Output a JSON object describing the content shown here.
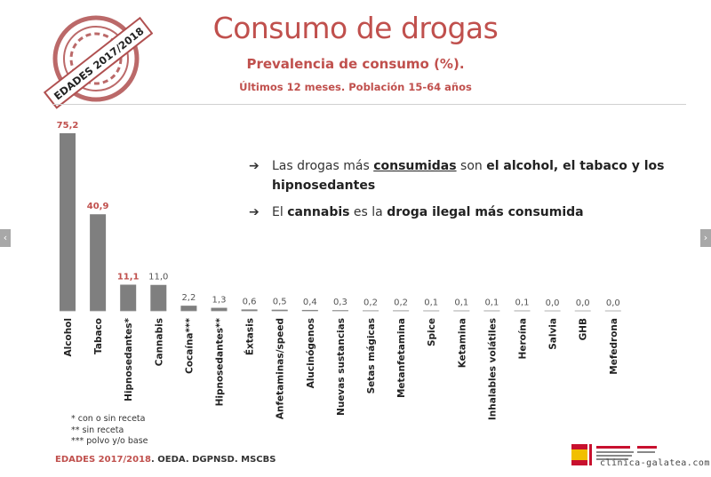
{
  "header": {
    "title": "Consumo de drogas",
    "subtitle": "Prevalencia de consumo (%).",
    "subtitle2": "Últimos 12 meses. Población 15-64 años"
  },
  "stamp": {
    "text": "EDADES 2017/2018"
  },
  "bullets": [
    {
      "icon": "right-arrow-icon",
      "p1": "Las drogas más ",
      "p2": "consumidas",
      "p3": " son ",
      "p4": "el alcohol, el tabaco y los hipnosedantes"
    },
    {
      "icon": "right-arrow-icon",
      "p1": "El ",
      "p2": "cannabis",
      "p3": " es la ",
      "p4": "droga ilegal más consumida"
    }
  ],
  "footnotes": [
    "* con o sin receta",
    "** sin receta",
    "*** polvo y/o base"
  ],
  "source": {
    "red": "EDADES 2017/2018",
    "rest": ". OEDA. DGPNSD. MSCBS"
  },
  "watermark": "clinica-galatea.com",
  "nav": {
    "prev": "‹",
    "next": "›"
  },
  "colors": {
    "accent": "#c0504d",
    "bar": "#7f7f7f",
    "label_red": "#c0504d",
    "label_gray": "#555555"
  },
  "chart_data": {
    "type": "bar",
    "categories": [
      "Alcohol",
      "Tabaco",
      "Hipnosedantes*",
      "Cannabis",
      "Cocaína***",
      "Hipnosedantes**",
      "Éxtasis",
      "Anfetaminas/speed",
      "Alucinógenos",
      "Nuevas sustancias",
      "Setas mágicas",
      "Metanfetamina",
      "Spice",
      "Ketamina",
      "Inhalables volátiles",
      "Heroína",
      "Salvia",
      "GHB",
      "Mefedrona"
    ],
    "values": [
      75.2,
      40.9,
      11.1,
      11.0,
      2.2,
      1.3,
      0.6,
      0.5,
      0.4,
      0.3,
      0.2,
      0.2,
      0.1,
      0.1,
      0.1,
      0.1,
      0.0,
      0.0,
      0.0
    ],
    "value_labels": [
      "75,2",
      "40,9",
      "11,1",
      "11,0",
      "2,2",
      "1,3",
      "0,6",
      "0,5",
      "0,4",
      "0,3",
      "0,2",
      "0,2",
      "0,1",
      "0,1",
      "0,1",
      "0,1",
      "0,0",
      "0,0",
      "0,0"
    ],
    "highlighted": [
      true,
      true,
      true,
      false,
      false,
      false,
      false,
      false,
      false,
      false,
      false,
      false,
      false,
      false,
      false,
      false,
      false,
      false,
      false
    ],
    "ylim": [
      0,
      75.2
    ],
    "grid": false,
    "legend": "none"
  }
}
